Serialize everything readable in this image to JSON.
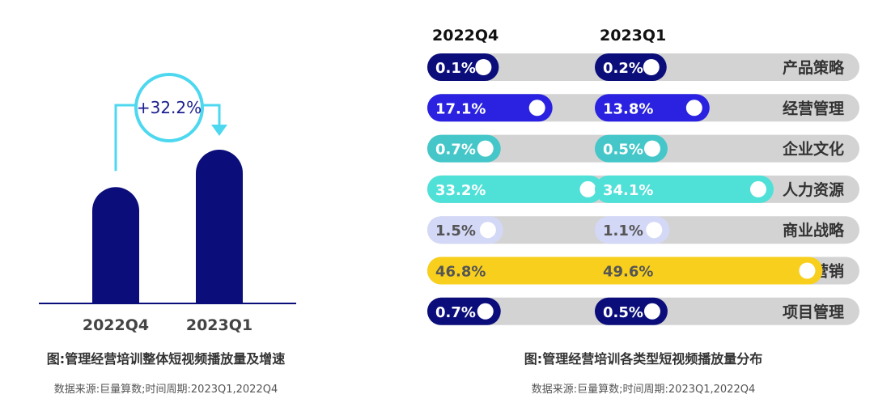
{
  "chart_data": [
    {
      "type": "bar",
      "categories": [
        "2022Q4",
        "2023Q1"
      ],
      "values": [
        100,
        132.2
      ],
      "growth_label": "+32.2%",
      "title": "图:管理经营培训整体短视频播放量及增速",
      "source": "数据来源:巨量算数;时间周期:2023Q1,2022Q4",
      "colors": {
        "bar": "#0b0e7a",
        "arrow": "#4dd8f0",
        "axis": "#0b0e7a"
      }
    },
    {
      "type": "bar",
      "orientation": "horizontal",
      "periods": [
        "2022Q4",
        "2023Q1"
      ],
      "categories": [
        "产品策略",
        "经营管理",
        "企业文化",
        "人力资源",
        "商业战略",
        "市场营销",
        "项目管理"
      ],
      "series": [
        {
          "name": "2022Q4",
          "values": [
            0.1,
            17.1,
            0.7,
            33.2,
            1.5,
            46.8,
            0.7
          ],
          "labels": [
            "0.1%",
            "17.1%",
            "0.7%",
            "33.2%",
            "1.5%",
            "46.8%",
            "0.7%"
          ]
        },
        {
          "name": "2023Q1",
          "values": [
            0.2,
            13.8,
            0.5,
            34.1,
            1.1,
            49.6,
            0.5
          ],
          "labels": [
            "0.2%",
            "13.8%",
            "0.5%",
            "34.1%",
            "1.1%",
            "49.6%",
            "0.5%"
          ]
        }
      ],
      "category_colors": [
        "#0b0e7a",
        "#2a22e0",
        "#45c7c9",
        "#4fe0d8",
        "#d4d8f7",
        "#f7cf1c",
        "#0b0e7a"
      ],
      "label_colors": [
        "#ffffff",
        "#ffffff",
        "#ffffff",
        "#ffffff",
        "#555555",
        "#555555",
        "#ffffff"
      ],
      "track_color": "#d3d3d3",
      "title": "图:管理经营培训各类型短视频播放量分布",
      "source": "数据来源:巨量算数;时间周期:2023Q1,2022Q4"
    }
  ]
}
